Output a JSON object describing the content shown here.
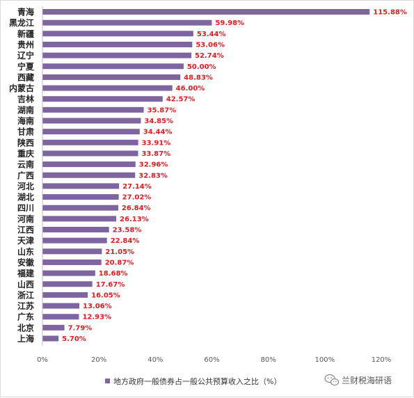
{
  "chart_data": {
    "type": "bar",
    "orientation": "horizontal",
    "categories": [
      "青海",
      "黑龙江",
      "新疆",
      "贵州",
      "辽宁",
      "宁夏",
      "西藏",
      "内蒙古",
      "吉林",
      "湖南",
      "海南",
      "甘肃",
      "陕西",
      "重庆",
      "云南",
      "广西",
      "河北",
      "湖北",
      "四川",
      "河南",
      "江西",
      "天津",
      "山东",
      "安徽",
      "福建",
      "山西",
      "浙江",
      "江苏",
      "广东",
      "北京",
      "上海"
    ],
    "series": [
      {
        "name": "地方政府一般债券占一般公共预算收入之比（%）",
        "values": [
          115.88,
          59.98,
          53.44,
          53.06,
          52.74,
          50.0,
          48.83,
          46.0,
          42.57,
          35.87,
          34.85,
          34.44,
          33.91,
          33.87,
          32.96,
          32.83,
          27.14,
          27.02,
          26.84,
          26.13,
          23.58,
          22.84,
          21.05,
          20.87,
          18.68,
          17.67,
          16.05,
          13.06,
          12.93,
          7.79,
          5.7
        ],
        "labels": [
          "115.88%",
          "59.98%",
          "53.44%",
          "53.06%",
          "52.74%",
          "50.00%",
          "48.83%",
          "46.00%",
          "42.57%",
          "35.87%",
          "34.85%",
          "34.44%",
          "33.91%",
          "33.87%",
          "32.96%",
          "32.83%",
          "27.14%",
          "27.02%",
          "26.84%",
          "26.13%",
          "23.58%",
          "22.84%",
          "21.05%",
          "20.87%",
          "18.68%",
          "17.67%",
          "16.05%",
          "13.06%",
          "12.93%",
          "7.79%",
          "5.70%"
        ]
      }
    ],
    "x_ticks": [
      "0%",
      "20%",
      "40%",
      "60%",
      "80%",
      "100%",
      "120%"
    ],
    "xlim": [
      0,
      120
    ],
    "grid": false,
    "legend_position": "bottom"
  },
  "colors": {
    "bar": "#7f659f",
    "data_label": "#e31a1c",
    "axis": "#bfbfbf"
  },
  "watermark": {
    "text": "兰财税海研语",
    "icon": "wechat-icon"
  }
}
